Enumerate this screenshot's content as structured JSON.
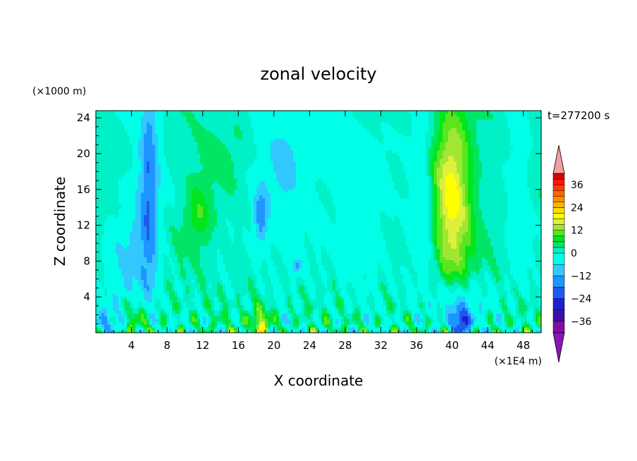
{
  "chart_data": {
    "type": "heatmap",
    "title": "zonal velocity",
    "xlabel": "X coordinate",
    "ylabel": "Z coordinate",
    "x_unit": "(×1E4 m)",
    "y_unit": "(×1000 m)",
    "time_label": "t=277200 s",
    "xlim": [
      0,
      50
    ],
    "ylim": [
      0,
      24.8
    ],
    "x_ticks": [
      4,
      8,
      12,
      16,
      20,
      24,
      28,
      32,
      36,
      40,
      44,
      48
    ],
    "y_ticks": [
      4,
      8,
      12,
      16,
      20,
      24
    ],
    "colorbar": {
      "levels": [
        -42,
        -36,
        -30,
        -24,
        -18,
        -12,
        -6,
        0,
        3,
        6,
        9,
        12,
        15,
        18,
        21,
        24,
        27,
        30,
        33,
        36,
        39,
        42
      ],
      "labels": [
        36,
        24,
        12,
        0,
        -12,
        -24,
        -36
      ],
      "colors": [
        "#7f0f9f",
        "#3c10a8",
        "#1e1ed2",
        "#1e5af0",
        "#1e96ff",
        "#32c8ff",
        "#00ffe6",
        "#00f0c8",
        "#00e664",
        "#00e61e",
        "#5ae61e",
        "#a0e632",
        "#dcf03c",
        "#ffff00",
        "#ffdc00",
        "#ffb400",
        "#ff8c00",
        "#ff6400",
        "#ff3c00",
        "#ff1400",
        "#dc0000"
      ],
      "over_color": "#f0a0a0",
      "under_color": "#8c14b4"
    },
    "features": [
      {
        "x": 6,
        "z": 18,
        "sx": 1.0,
        "sz": 14,
        "v": -16
      },
      {
        "x": 5,
        "z": 10,
        "sx": 2.2,
        "sz": 10,
        "v": -8
      },
      {
        "x": 11.5,
        "z": 13,
        "sx": 1.5,
        "sz": 4,
        "v": 7
      },
      {
        "x": 18.5,
        "z": 13,
        "sx": 0.7,
        "sz": 3,
        "v": -16
      },
      {
        "x": 21,
        "z": 17,
        "sx": 3.0,
        "sz": 10,
        "v": -7
      },
      {
        "x": 29,
        "z": 18,
        "sx": 4.0,
        "sz": 6,
        "v": -4
      },
      {
        "x": 40,
        "z": 15,
        "sx": 2.2,
        "sz": 10,
        "v": 18
      },
      {
        "x": 36.5,
        "z": 15,
        "sx": 1.5,
        "sz": 10,
        "v": -7
      },
      {
        "x": 47.5,
        "z": 15,
        "sx": 1.3,
        "sz": 10,
        "v": -6
      },
      {
        "x": 40.5,
        "z": 3,
        "sx": 3.0,
        "sz": 2.8,
        "v": -12
      },
      {
        "x": 41,
        "z": 1.2,
        "sx": 1.0,
        "sz": 1.4,
        "v": -22
      },
      {
        "x": 5,
        "z": 1.5,
        "sx": 2.0,
        "sz": 2.5,
        "v": 9
      },
      {
        "x": 18.5,
        "z": 1.0,
        "sx": 1.2,
        "sz": 2.0,
        "v": 14
      },
      {
        "x": 22.5,
        "z": 7.5,
        "sx": 0.5,
        "sz": 0.8,
        "v": -14
      },
      {
        "x": 24,
        "z": 22,
        "sx": 5.0,
        "sz": 4,
        "v": -3
      },
      {
        "x": 14,
        "z": 21,
        "sx": 4.0,
        "sz": 4,
        "v": 2
      },
      {
        "x": 1,
        "z": 1,
        "sx": 1.5,
        "sz": 2,
        "v": -12
      },
      {
        "x": 2.5,
        "z": 6,
        "sx": 1.5,
        "sz": 5,
        "v": -5
      },
      {
        "x": 30,
        "z": 9,
        "sx": 2.5,
        "sz": 5,
        "v": -6
      }
    ]
  }
}
